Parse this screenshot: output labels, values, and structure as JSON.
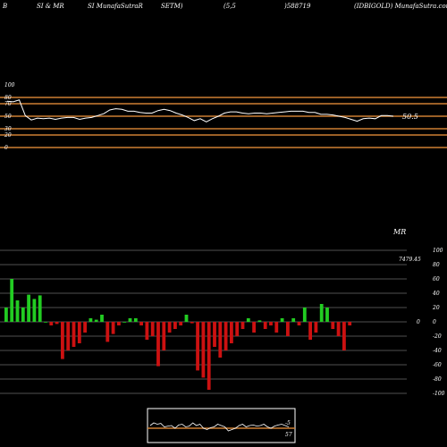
{
  "header": {
    "col1": "B",
    "col2": "SI & MR",
    "col3": "SI MunafaSutraR",
    "col4": "SETM)",
    "col5": "(5,5",
    "col6": ")588719",
    "col7": "(IDBIGOLD) MunafaSutra.com"
  },
  "colors": {
    "background": "#000000",
    "band_line": "#cd7f32",
    "rsi_line": "#ffffff",
    "positive_bar": "#22cc22",
    "negative_bar": "#cc1111",
    "grid": "#ffffff"
  },
  "chart_data": [
    {
      "type": "line",
      "ylim": [
        0,
        100
      ],
      "yticks": [
        "100",
        "80",
        "70",
        "50",
        "30",
        "20",
        "0"
      ],
      "y_tick_values": [
        100,
        80,
        70,
        50,
        30,
        20,
        0
      ],
      "band_levels": [
        80,
        70,
        50,
        30,
        20,
        0
      ],
      "last_value_label": "50.5",
      "values": [
        74,
        73,
        76,
        51,
        44,
        47,
        46,
        47,
        45,
        47,
        48,
        48,
        45,
        47,
        48,
        51,
        54,
        60,
        62,
        61,
        58,
        58,
        56,
        55,
        55,
        59,
        61,
        59,
        55,
        52,
        48,
        43,
        46,
        41,
        46,
        50,
        55,
        57,
        57,
        55,
        54,
        55,
        55,
        54,
        55,
        56,
        57,
        58,
        58,
        58,
        56,
        56,
        53,
        53,
        52,
        50,
        48,
        45,
        42,
        46,
        47,
        46,
        51,
        51,
        50
      ]
    },
    {
      "type": "bar",
      "title": "MR",
      "ylim": [
        -100,
        100
      ],
      "yticks": [
        "100",
        "80",
        "60",
        "40",
        "20",
        "0",
        "-20",
        "-40",
        "-60",
        "-80",
        "-100"
      ],
      "y_tick_values": [
        100,
        80,
        60,
        40,
        20,
        0,
        -20,
        -40,
        -60,
        -80,
        -100
      ],
      "last_value_label": "7479.45",
      "zero_label": "0",
      "values": [
        20,
        60,
        30,
        20,
        38,
        32,
        37,
        0,
        -5,
        -3,
        -52,
        -40,
        -35,
        -30,
        -15,
        5,
        3,
        10,
        -28,
        -17,
        -5,
        0,
        5,
        5,
        -5,
        -25,
        -20,
        -62,
        -40,
        -15,
        -10,
        -5,
        10,
        -2,
        -68,
        -78,
        -95,
        -35,
        -50,
        -40,
        -30,
        -20,
        -10,
        5,
        -15,
        2,
        -10,
        -5,
        -15,
        5,
        -20,
        5,
        -5,
        20,
        -25,
        -15,
        25,
        20,
        -10,
        -20,
        -40,
        -5
      ],
      "colors": "positive green, negative red"
    },
    {
      "type": "line",
      "inset": true,
      "label": "-5",
      "label2": "57",
      "values": [
        50,
        60,
        55,
        58,
        45,
        48,
        50,
        40,
        52,
        55,
        45,
        48,
        60,
        50,
        55,
        40,
        35,
        42,
        45,
        55,
        50,
        45,
        30,
        35,
        40,
        50,
        55,
        45,
        50,
        52,
        48,
        50,
        55,
        45,
        40,
        48,
        52,
        55,
        50,
        45
      ]
    }
  ]
}
